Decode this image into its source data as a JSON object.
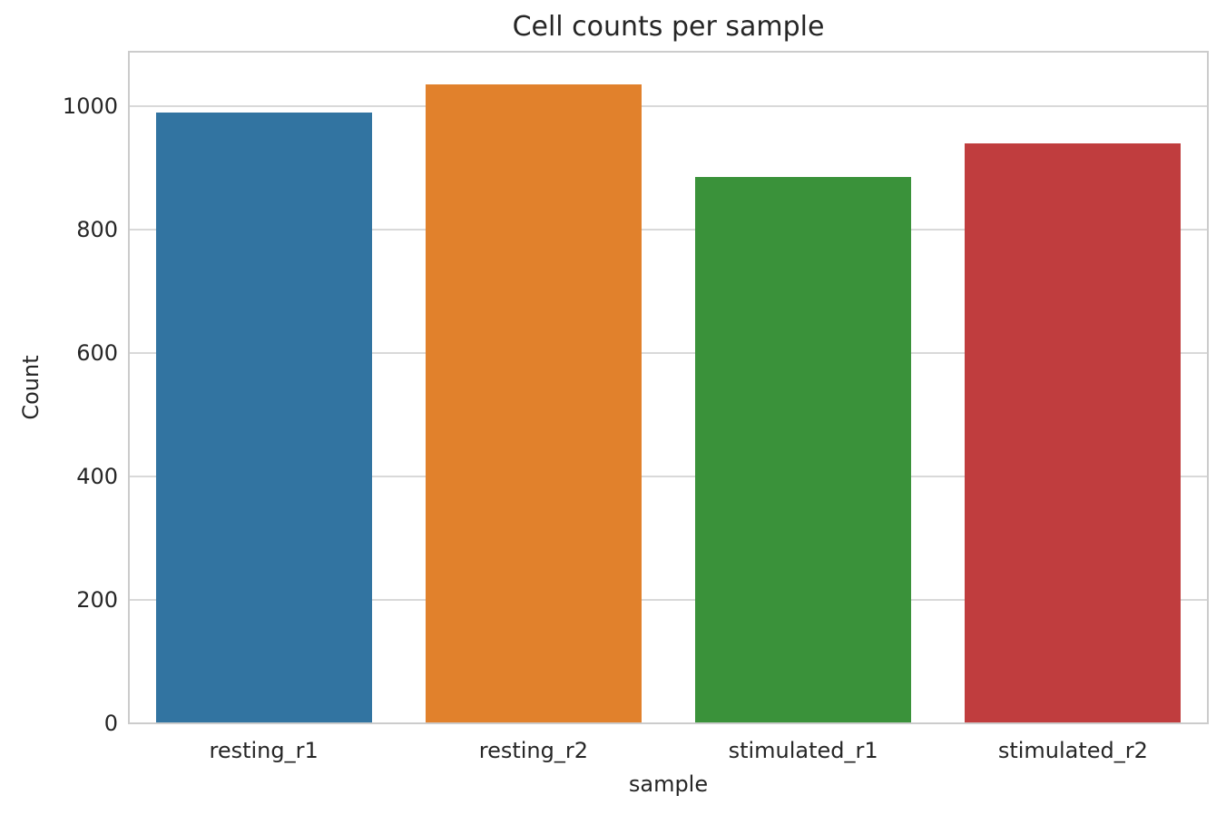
{
  "chart_data": {
    "type": "bar",
    "title": "Cell counts per sample",
    "xlabel": "sample",
    "ylabel": "Count",
    "categories": [
      "resting_r1",
      "resting_r2",
      "stimulated_r1",
      "stimulated_r2"
    ],
    "values": [
      990,
      1035,
      885,
      940
    ],
    "bar_colors": [
      "#3274a1",
      "#e1812c",
      "#3a923a",
      "#c03d3e"
    ],
    "yticks": [
      0,
      200,
      400,
      600,
      800,
      1000
    ],
    "ylim": [
      0,
      1087
    ],
    "grid": true,
    "legend_position": "none",
    "background_color": "#ffffff",
    "grid_color": "#d9d9d9",
    "spine_color": "#cccccc",
    "text_color": "#262626"
  }
}
